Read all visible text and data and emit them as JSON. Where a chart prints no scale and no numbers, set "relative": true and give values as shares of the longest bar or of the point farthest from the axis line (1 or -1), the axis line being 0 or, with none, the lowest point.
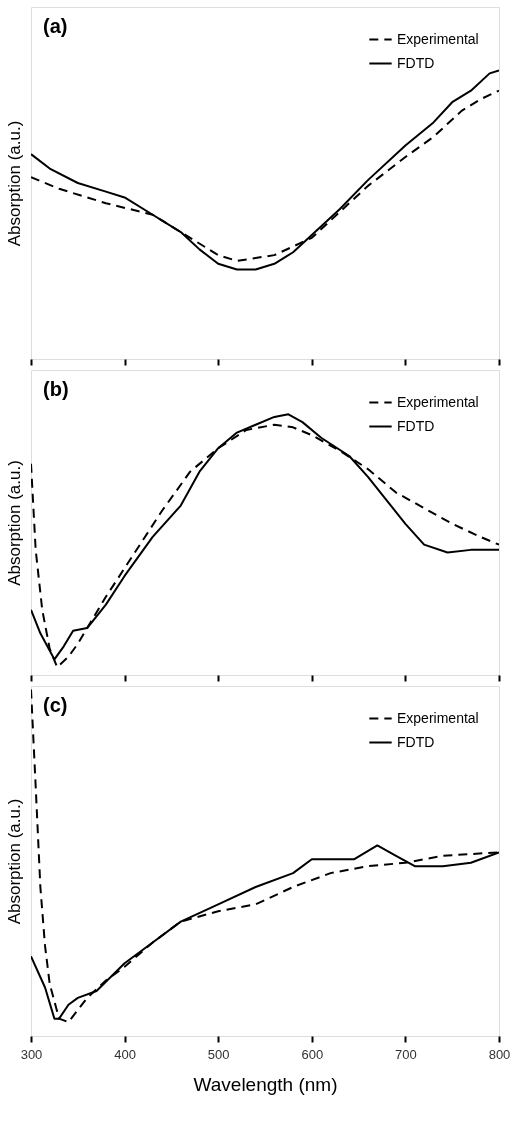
{
  "chart_data": [
    {
      "type": "line",
      "title": "(a)",
      "ylabel": "Absorption (a.u.)",
      "relative": true,
      "xlim": [
        300,
        800
      ],
      "xticks": [
        300,
        400,
        500,
        600,
        700,
        800
      ],
      "tick_labels": false,
      "legend": "top right",
      "grid": false,
      "series": [
        {
          "name": "Experimental",
          "color": "#000000",
          "line_style": "dashed",
          "x": [
            300,
            330,
            380,
            430,
            470,
            500,
            520,
            560,
            600,
            630,
            660,
            700,
            730,
            760,
            780,
            800
          ],
          "values": [
            0.63,
            0.59,
            0.54,
            0.5,
            0.42,
            0.36,
            0.34,
            0.36,
            0.42,
            0.51,
            0.6,
            0.7,
            0.77,
            0.86,
            0.9,
            0.93
          ]
        },
        {
          "name": "FDTD",
          "color": "#000000",
          "line_style": "solid",
          "x": [
            300,
            320,
            350,
            380,
            400,
            430,
            460,
            480,
            500,
            520,
            540,
            560,
            580,
            600,
            630,
            660,
            700,
            730,
            750,
            770,
            790,
            800
          ],
          "values": [
            0.71,
            0.66,
            0.61,
            0.58,
            0.56,
            0.5,
            0.44,
            0.38,
            0.33,
            0.31,
            0.31,
            0.33,
            0.37,
            0.43,
            0.52,
            0.62,
            0.74,
            0.82,
            0.89,
            0.93,
            0.99,
            1.0
          ]
        }
      ]
    },
    {
      "type": "line",
      "title": "(b)",
      "ylabel": "Absorption (a.u.)",
      "relative": true,
      "xlim": [
        300,
        800
      ],
      "xticks": [
        300,
        400,
        500,
        600,
        700,
        800
      ],
      "tick_labels": false,
      "legend": "top right",
      "grid": false,
      "series": [
        {
          "name": "Experimental",
          "color": "#000000",
          "line_style": "dashed",
          "x": [
            300,
            305,
            312,
            320,
            328,
            340,
            350,
            365,
            380,
            400,
            420,
            440,
            470,
            500,
            530,
            560,
            580,
            600,
            630,
            660,
            690,
            720,
            750,
            780,
            800
          ],
          "values": [
            0.81,
            0.48,
            0.25,
            0.1,
            0.03,
            0.07,
            0.12,
            0.21,
            0.3,
            0.41,
            0.52,
            0.63,
            0.78,
            0.87,
            0.94,
            0.96,
            0.95,
            0.92,
            0.86,
            0.79,
            0.7,
            0.64,
            0.58,
            0.53,
            0.5
          ]
        },
        {
          "name": "FDTD",
          "color": "#000000",
          "line_style": "solid",
          "x": [
            300,
            310,
            325,
            335,
            345,
            360,
            380,
            400,
            430,
            460,
            480,
            500,
            520,
            540,
            560,
            575,
            590,
            610,
            640,
            660,
            680,
            700,
            720,
            745,
            770,
            800
          ],
          "values": [
            0.25,
            0.16,
            0.06,
            0.11,
            0.17,
            0.18,
            0.27,
            0.38,
            0.53,
            0.65,
            0.78,
            0.87,
            0.93,
            0.96,
            0.99,
            1.0,
            0.97,
            0.91,
            0.84,
            0.76,
            0.67,
            0.58,
            0.5,
            0.47,
            0.48,
            0.48
          ]
        }
      ]
    },
    {
      "type": "line",
      "title": "(c)",
      "ylabel": "Absorption (a.u.)",
      "xlabel": "Wavelength (nm)",
      "relative": true,
      "xlim": [
        300,
        800
      ],
      "xticks": [
        300,
        400,
        500,
        600,
        700,
        800
      ],
      "tick_labels": "x",
      "legend": "top right",
      "grid": false,
      "series": [
        {
          "name": "Experimental",
          "color": "#000000",
          "line_style": "dashed",
          "x": [
            300,
            305,
            310,
            315,
            320,
            330,
            340,
            360,
            380,
            400,
            430,
            460,
            500,
            540,
            580,
            620,
            660,
            700,
            740,
            800
          ],
          "values": [
            1.0,
            0.72,
            0.43,
            0.26,
            0.15,
            0.05,
            0.04,
            0.11,
            0.16,
            0.2,
            0.27,
            0.33,
            0.36,
            0.38,
            0.43,
            0.47,
            0.49,
            0.5,
            0.52,
            0.53
          ]
        },
        {
          "name": "FDTD",
          "color": "#000000",
          "line_style": "solid",
          "x": [
            300,
            315,
            325,
            330,
            340,
            350,
            370,
            400,
            430,
            460,
            500,
            540,
            580,
            600,
            620,
            645,
            670,
            690,
            710,
            740,
            770,
            800
          ],
          "values": [
            0.23,
            0.14,
            0.05,
            0.05,
            0.09,
            0.11,
            0.13,
            0.21,
            0.27,
            0.33,
            0.38,
            0.43,
            0.47,
            0.51,
            0.51,
            0.51,
            0.55,
            0.52,
            0.49,
            0.49,
            0.5,
            0.53
          ]
        }
      ]
    }
  ]
}
